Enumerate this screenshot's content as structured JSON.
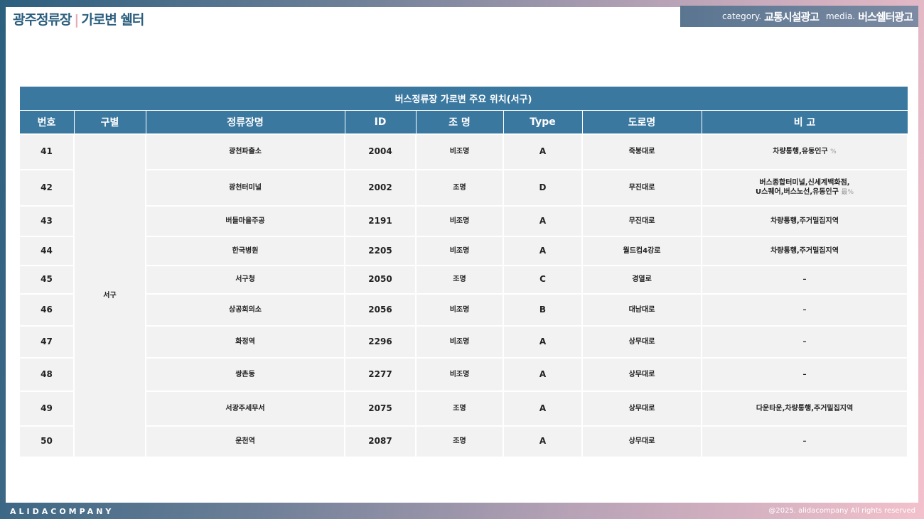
{
  "header": {
    "title_main": "광주정류장",
    "title_sep": "|",
    "title_sub": "가로변 쉘터",
    "category_label": "category.",
    "category_value": "교통시설광고",
    "media_label": "media.",
    "media_value": "버스쉘터광고"
  },
  "table": {
    "caption": "버스정류장 가로변 주요 위치(서구)",
    "columns": [
      "번호",
      "구별",
      "정류장명",
      "ID",
      "조 명",
      "Type",
      "도로명",
      "비 고"
    ],
    "district": "서구",
    "rows": [
      {
        "no": "41",
        "name": "광천파출소",
        "id": "2004",
        "light": "비조명",
        "type": "A",
        "road": "죽봉대로",
        "note": "차량통행,유동인구",
        "sym": "%"
      },
      {
        "no": "42",
        "name": "광천터미널",
        "id": "2002",
        "light": "조명",
        "type": "D",
        "road": "무진대로",
        "note": "버스종합터미널,신세계백화점,",
        "note2": "U스퀘어,버스노선,유동인구",
        "sym": "最%"
      },
      {
        "no": "43",
        "name": "버들마을주공",
        "id": "2191",
        "light": "비조명",
        "type": "A",
        "road": "무진대로",
        "note": "차량통행,주거밀집지역"
      },
      {
        "no": "44",
        "name": "한국병원",
        "id": "2205",
        "light": "비조명",
        "type": "A",
        "road": "월드컵4강로",
        "note": "차량통행,주거밀집지역"
      },
      {
        "no": "45",
        "name": "서구청",
        "id": "2050",
        "light": "조명",
        "type": "C",
        "road": "경열로",
        "note": "–"
      },
      {
        "no": "46",
        "name": "상공회의소",
        "id": "2056",
        "light": "비조명",
        "type": "B",
        "road": "대남대로",
        "note": "–"
      },
      {
        "no": "47",
        "name": "화정역",
        "id": "2296",
        "light": "비조명",
        "type": "A",
        "road": "상무대로",
        "note": "–"
      },
      {
        "no": "48",
        "name": "쌍촌동",
        "id": "2277",
        "light": "비조명",
        "type": "A",
        "road": "상무대로",
        "note": "–"
      },
      {
        "no": "49",
        "name": "서광주세무서",
        "id": "2075",
        "light": "조명",
        "type": "A",
        "road": "상무대로",
        "note": "다운타운,차량통행,주거밀집지역"
      },
      {
        "no": "50",
        "name": "운천역",
        "id": "2087",
        "light": "조명",
        "type": "A",
        "road": "상무대로",
        "note": "–"
      }
    ]
  },
  "footer": {
    "brand": "ALIDACOMPANY",
    "copyright": "@2025. alidacompany All rights reserved"
  }
}
